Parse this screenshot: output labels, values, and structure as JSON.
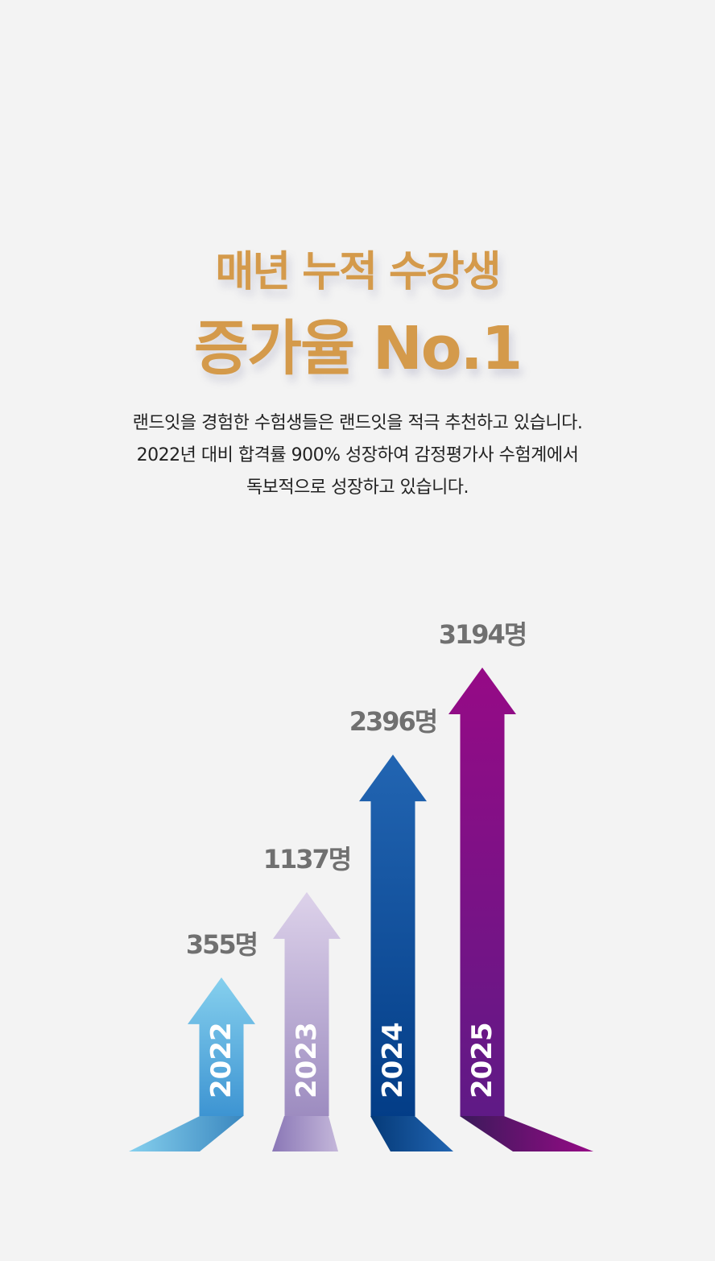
{
  "title": {
    "line1": "매년 누적 수강생",
    "line2": "증가율 No.1"
  },
  "description": [
    "랜드잇을 경험한 수험생들은 랜드잇을 적극 추천하고 있습니다.",
    "2022년 대비 합격률 900% 성장하여 감정평가사 수험계에서",
    "독보적으로 성장하고 있습니다."
  ],
  "chart_data": {
    "type": "bar",
    "title": "매년 누적 수강생",
    "categories": [
      "2022",
      "2023",
      "2024",
      "2025"
    ],
    "values": [
      355,
      1137,
      2396,
      3194
    ],
    "unit": "명",
    "value_labels": [
      "355명",
      "1137명",
      "2396명",
      "3194명"
    ],
    "colors": [
      {
        "top": "#86d0ee",
        "bottom": "#3d94d2"
      },
      {
        "top": "#ddd2ea",
        "bottom": "#9d8cc0"
      },
      {
        "top": "#2265b2",
        "bottom": "#033d87"
      },
      {
        "top": "#960a86",
        "bottom": "#5f1a86"
      }
    ],
    "label_color": "#707070"
  }
}
